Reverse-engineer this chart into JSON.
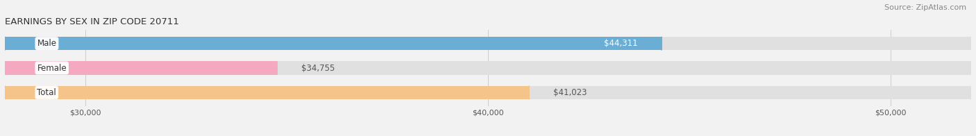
{
  "title": "EARNINGS BY SEX IN ZIP CODE 20711",
  "source": "Source: ZipAtlas.com",
  "categories": [
    "Male",
    "Female",
    "Total"
  ],
  "values": [
    44311,
    34755,
    41023
  ],
  "bar_colors": [
    "#6aaed6",
    "#f4a9c0",
    "#f5c48a"
  ],
  "label_inside": [
    true,
    false,
    false
  ],
  "xlim": [
    28000,
    52000
  ],
  "xticks": [
    30000,
    40000,
    50000
  ],
  "xtick_labels": [
    "$30,000",
    "$40,000",
    "$50,000"
  ],
  "value_labels": [
    "$44,311",
    "$34,755",
    "$41,023"
  ],
  "bar_height": 0.55,
  "background_color": "#f2f2f2",
  "title_fontsize": 9.5,
  "source_fontsize": 8,
  "bar_label_fontsize": 8.5,
  "category_fontsize": 8.5,
  "tick_fontsize": 8
}
